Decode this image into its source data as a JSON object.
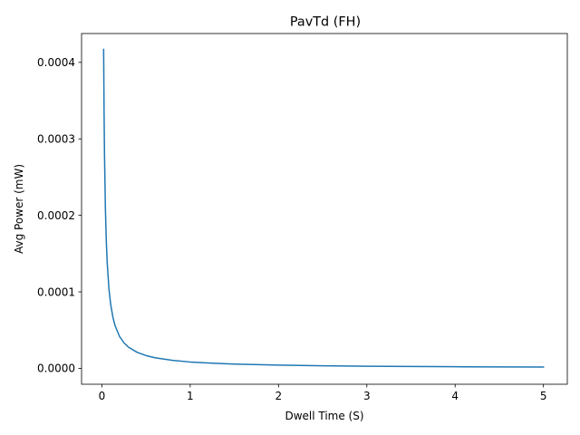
{
  "chart_data": {
    "type": "line",
    "title": "PavTd (FH)",
    "xlabel": "Dwell Time (S)",
    "ylabel": "Avg Power (mW)",
    "xlim": [
      -0.23,
      5.27
    ],
    "ylim": [
      -2.08e-05,
      0.0004377
    ],
    "xticks": [
      0,
      1,
      2,
      3,
      4,
      5
    ],
    "xtick_labels": [
      "0",
      "1",
      "2",
      "3",
      "4",
      "5"
    ],
    "yticks": [
      0.0,
      0.0001,
      0.0002,
      0.0003,
      0.0004
    ],
    "ytick_labels": [
      "0.0000",
      "0.0001",
      "0.0002",
      "0.0003",
      "0.0004"
    ],
    "grid": false,
    "series": [
      {
        "color": "#1f77b4",
        "x": [
          0.02,
          0.025,
          0.03,
          0.04,
          0.05,
          0.06,
          0.08,
          0.1,
          0.125,
          0.15,
          0.2,
          0.25,
          0.3,
          0.4,
          0.5,
          0.6,
          0.8,
          1.0,
          1.25,
          1.5,
          2.0,
          2.5,
          3.0,
          3.5,
          4.0,
          4.5,
          5.0
        ],
        "y": [
          0.000417,
          0.000334,
          0.000278,
          0.000209,
          0.000167,
          0.000139,
          0.000104,
          8.34e-05,
          6.67e-05,
          5.56e-05,
          4.17e-05,
          3.34e-05,
          2.78e-05,
          2.09e-05,
          1.67e-05,
          1.39e-05,
          1.04e-05,
          8.3e-06,
          6.7e-06,
          5.6e-06,
          4.2e-06,
          3.3e-06,
          2.8e-06,
          2.4e-06,
          2.1e-06,
          1.9e-06,
          1.7e-06
        ]
      }
    ]
  }
}
